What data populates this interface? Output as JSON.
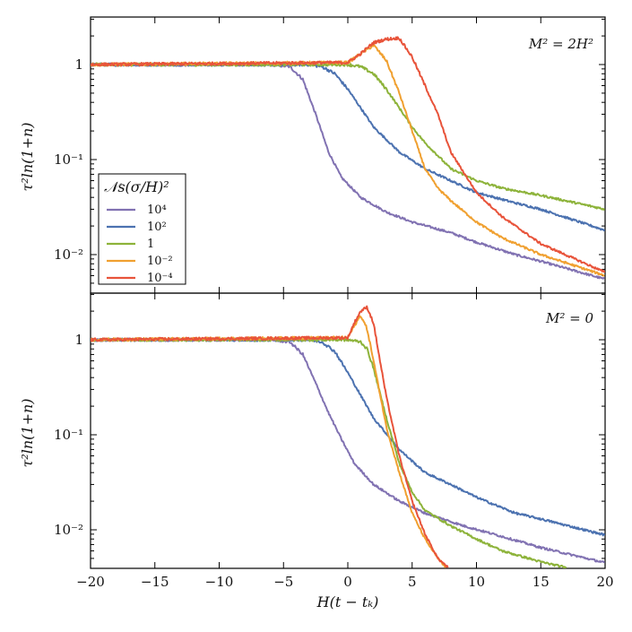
{
  "chart_data": [
    {
      "type": "line",
      "panel": "top",
      "annotation": "M² = 2H²",
      "ylabel": "τ²ln(1+n)",
      "xlabel": "",
      "xlim": [
        -20,
        20
      ],
      "ylim": [
        0.004,
        3.2
      ],
      "yscale": "log",
      "yticks": [
        {
          "value": 1,
          "label": "1"
        },
        {
          "value": 0.1,
          "label": "10⁻¹"
        },
        {
          "value": 0.01,
          "label": "10⁻²"
        }
      ],
      "legend": {
        "title": "𝒩s(σ/H)²",
        "placement": "center-left",
        "entries": [
          "10⁴",
          "10²",
          "1",
          "10⁻²",
          "10⁻⁴"
        ]
      },
      "series": [
        {
          "name": "10⁴",
          "color": "#8172b2",
          "x": [
            -20,
            -6,
            -4.5,
            -3.5,
            -2.5,
            -1.5,
            -0.5,
            1,
            3,
            5,
            8,
            10,
            13,
            15,
            20
          ],
          "y": [
            1,
            1,
            0.95,
            0.7,
            0.3,
            0.12,
            0.065,
            0.04,
            0.028,
            0.022,
            0.017,
            0.0135,
            0.01,
            0.0085,
            0.0055
          ]
        },
        {
          "name": "10²",
          "color": "#4c72b0",
          "x": [
            -20,
            -3,
            -2,
            -1,
            0,
            1,
            2,
            4,
            6,
            8,
            10,
            13,
            15,
            20
          ],
          "y": [
            1,
            1,
            0.95,
            0.8,
            0.55,
            0.35,
            0.22,
            0.12,
            0.08,
            0.06,
            0.045,
            0.035,
            0.03,
            0.018
          ]
        },
        {
          "name": "1",
          "color": "#8db33a",
          "x": [
            -20,
            0,
            1,
            2,
            3,
            4,
            5,
            6,
            7,
            8,
            10,
            12,
            15,
            20
          ],
          "y": [
            1,
            1,
            0.95,
            0.8,
            0.55,
            0.35,
            0.22,
            0.15,
            0.11,
            0.08,
            0.06,
            0.05,
            0.042,
            0.03
          ]
        },
        {
          "name": "10⁻²",
          "color": "#f0a030",
          "x": [
            -20,
            0,
            1,
            2,
            3,
            4,
            5,
            6,
            7,
            8,
            10,
            12,
            15,
            20
          ],
          "y": [
            1,
            1.05,
            1.3,
            1.6,
            1.1,
            0.5,
            0.2,
            0.08,
            0.05,
            0.037,
            0.022,
            0.015,
            0.01,
            0.006
          ]
        },
        {
          "name": "10⁻⁴",
          "color": "#e8533a",
          "x": [
            -20,
            0,
            1,
            2,
            3,
            4,
            5,
            6,
            7,
            8,
            10,
            12,
            15,
            20
          ],
          "y": [
            1,
            1.05,
            1.3,
            1.7,
            1.85,
            1.9,
            1.2,
            0.6,
            0.3,
            0.12,
            0.045,
            0.025,
            0.013,
            0.0065
          ]
        }
      ]
    },
    {
      "type": "line",
      "panel": "bottom",
      "annotation": "M² = 0",
      "ylabel": "τ²ln(1+n)",
      "xlabel": "H(t − tₖ)",
      "xlim": [
        -20,
        20
      ],
      "ylim": [
        0.004,
        3.2
      ],
      "yscale": "log",
      "xticks": [
        -20,
        -15,
        -10,
        -5,
        0,
        5,
        10,
        15,
        20
      ],
      "xticklabels": [
        "−20",
        "−15",
        "−10",
        "−5",
        "0",
        "5",
        "10",
        "15",
        "20"
      ],
      "yticks": [
        {
          "value": 1,
          "label": "1"
        },
        {
          "value": 0.1,
          "label": "10⁻¹"
        },
        {
          "value": 0.01,
          "label": "10⁻²"
        }
      ],
      "series": [
        {
          "name": "10⁴",
          "color": "#8172b2",
          "x": [
            -20,
            -6,
            -4.5,
            -3.5,
            -2.5,
            -1.5,
            -0.5,
            0.5,
            2,
            4,
            6,
            9,
            12,
            15,
            20
          ],
          "y": [
            1,
            1,
            0.95,
            0.7,
            0.35,
            0.17,
            0.09,
            0.05,
            0.03,
            0.02,
            0.015,
            0.011,
            0.0085,
            0.0065,
            0.0045
          ]
        },
        {
          "name": "10²",
          "color": "#4c72b0",
          "x": [
            -20,
            -3,
            -2,
            -1,
            0,
            1,
            2,
            4,
            6,
            8,
            10,
            13,
            15,
            20
          ],
          "y": [
            1,
            1,
            0.95,
            0.75,
            0.45,
            0.26,
            0.15,
            0.07,
            0.04,
            0.03,
            0.022,
            0.015,
            0.013,
            0.0088
          ]
        },
        {
          "name": "1",
          "color": "#8db33a",
          "x": [
            -20,
            0,
            1,
            1.5,
            2,
            3,
            4,
            5,
            6,
            8,
            10,
            12,
            15,
            17
          ],
          "y": [
            1,
            1,
            0.95,
            0.8,
            0.5,
            0.15,
            0.05,
            0.025,
            0.016,
            0.011,
            0.008,
            0.006,
            0.0046,
            0.004
          ]
        },
        {
          "name": "10⁻²",
          "color": "#f0a030",
          "x": [
            -20,
            0,
            0.5,
            1,
            1.5,
            2,
            3,
            4,
            5,
            6,
            7,
            7.6
          ],
          "y": [
            1,
            1.05,
            1.4,
            1.8,
            1.3,
            0.6,
            0.12,
            0.04,
            0.015,
            0.008,
            0.005,
            0.004
          ]
        },
        {
          "name": "10⁻⁴",
          "color": "#e8533a",
          "x": [
            -20,
            0,
            0.5,
            1,
            1.5,
            2,
            2.5,
            3,
            4,
            5,
            6,
            7,
            7.8
          ],
          "y": [
            1,
            1.05,
            1.5,
            2.0,
            2.2,
            1.5,
            0.6,
            0.25,
            0.06,
            0.02,
            0.009,
            0.005,
            0.004
          ]
        }
      ]
    }
  ]
}
